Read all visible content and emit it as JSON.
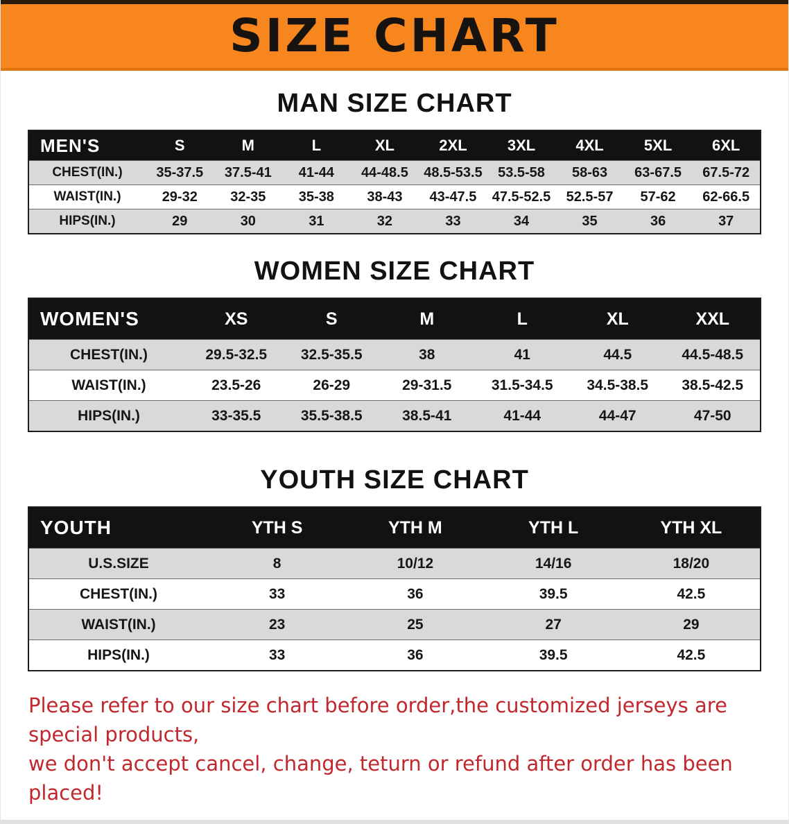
{
  "banner": {
    "title": "SIZE CHART"
  },
  "sections": [
    {
      "heading": "MAN SIZE CHART",
      "table": {
        "header": [
          "MEN'S",
          "S",
          "M",
          "L",
          "XL",
          "2XL",
          "3XL",
          "4XL",
          "5XL",
          "6XL"
        ],
        "rows": [
          [
            "CHEST(IN.)",
            "35-37.5",
            "37.5-41",
            "41-44",
            "44-48.5",
            "48.5-53.5",
            "53.5-58",
            "58-63",
            "63-67.5",
            "67.5-72"
          ],
          [
            "WAIST(IN.)",
            "29-32",
            "32-35",
            "35-38",
            "38-43",
            "43-47.5",
            "47.5-52.5",
            "52.5-57",
            "57-62",
            "62-66.5"
          ],
          [
            "HIPS(IN.)",
            "29",
            "30",
            "31",
            "32",
            "33",
            "34",
            "35",
            "36",
            "37"
          ]
        ]
      }
    },
    {
      "heading": "WOMEN SIZE CHART",
      "table": {
        "header": [
          "WOMEN'S",
          "XS",
          "S",
          "M",
          "L",
          "XL",
          "XXL"
        ],
        "rows": [
          [
            "CHEST(IN.)",
            "29.5-32.5",
            "32.5-35.5",
            "38",
            "41",
            "44.5",
            "44.5-48.5"
          ],
          [
            "WAIST(IN.)",
            "23.5-26",
            "26-29",
            "29-31.5",
            "31.5-34.5",
            "34.5-38.5",
            "38.5-42.5"
          ],
          [
            "HIPS(IN.)",
            "33-35.5",
            "35.5-38.5",
            "38.5-41",
            "41-44",
            "44-47",
            "47-50"
          ]
        ]
      }
    },
    {
      "heading": "YOUTH SIZE CHART",
      "table": {
        "header": [
          "YOUTH",
          "YTH S",
          "YTH M",
          "YTH L",
          "YTH XL"
        ],
        "rows": [
          [
            "U.S.SIZE",
            "8",
            "10/12",
            "14/16",
            "18/20"
          ],
          [
            "CHEST(IN.)",
            "33",
            "36",
            "39.5",
            "42.5"
          ],
          [
            "WAIST(IN.)",
            "23",
            "25",
            "27",
            "29"
          ],
          [
            "HIPS(IN.)",
            "33",
            "36",
            "39.5",
            "42.5"
          ]
        ]
      }
    }
  ],
  "footer": {
    "line1": "Please refer to our size chart before order,the customized jerseys are special products,",
    "line2": "we don't accept cancel, change, teturn or refund after order has been placed!"
  },
  "colors": {
    "banner_bg": "#f6861d",
    "table_header_bg": "#121212",
    "row_alt_bg": "#d9d9d9",
    "footer_text": "#c1272d"
  }
}
